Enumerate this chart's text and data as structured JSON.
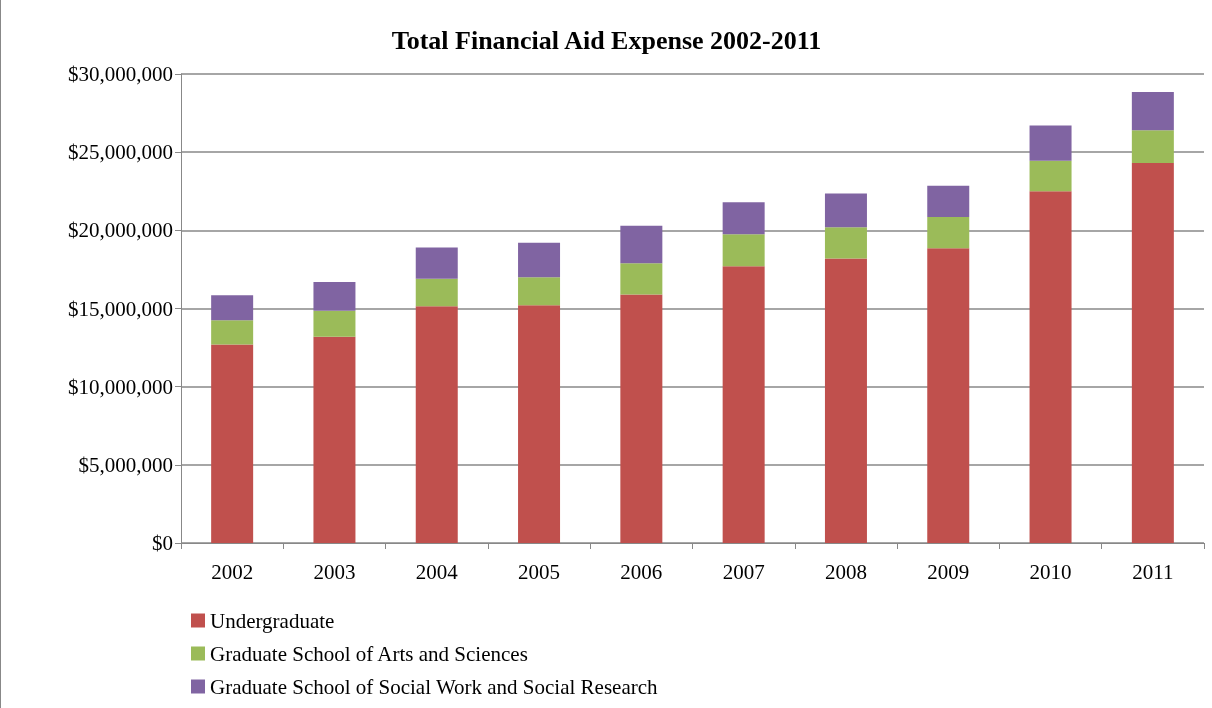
{
  "chart_data": {
    "type": "bar",
    "title": "Total Financial Aid Expense 2002-2011",
    "stacked": true,
    "categories": [
      "2002",
      "2003",
      "2004",
      "2005",
      "2006",
      "2007",
      "2008",
      "2009",
      "2010",
      "2011"
    ],
    "series": [
      {
        "name": "Undergraduate",
        "color": "#c0504d",
        "values": [
          12700000,
          13200000,
          15150000,
          15200000,
          15900000,
          17700000,
          18200000,
          18850000,
          22500000,
          24300000
        ]
      },
      {
        "name": "Graduate School of Arts and Sciences",
        "color": "#9bbb59",
        "values": [
          1550000,
          1650000,
          1750000,
          1800000,
          2000000,
          2050000,
          2000000,
          2000000,
          1950000,
          2100000
        ]
      },
      {
        "name": "Graduate School of Social Work and Social Research",
        "color": "#8064a2",
        "values": [
          1600000,
          1850000,
          2000000,
          2200000,
          2400000,
          2050000,
          2150000,
          2000000,
          2250000,
          2450000
        ]
      }
    ],
    "ylim": [
      0,
      30000000
    ],
    "yticks": [
      {
        "value": 0,
        "label": "$0"
      },
      {
        "value": 5000000,
        "label": "$5,000,000"
      },
      {
        "value": 10000000,
        "label": "$10,000,000"
      },
      {
        "value": 15000000,
        "label": "$15,000,000"
      },
      {
        "value": 20000000,
        "label": "$20,000,000"
      },
      {
        "value": 25000000,
        "label": "$25,000,000"
      },
      {
        "value": 30000000,
        "label": "$30,000,000"
      }
    ],
    "grid": "y",
    "legend": "bottom left"
  }
}
